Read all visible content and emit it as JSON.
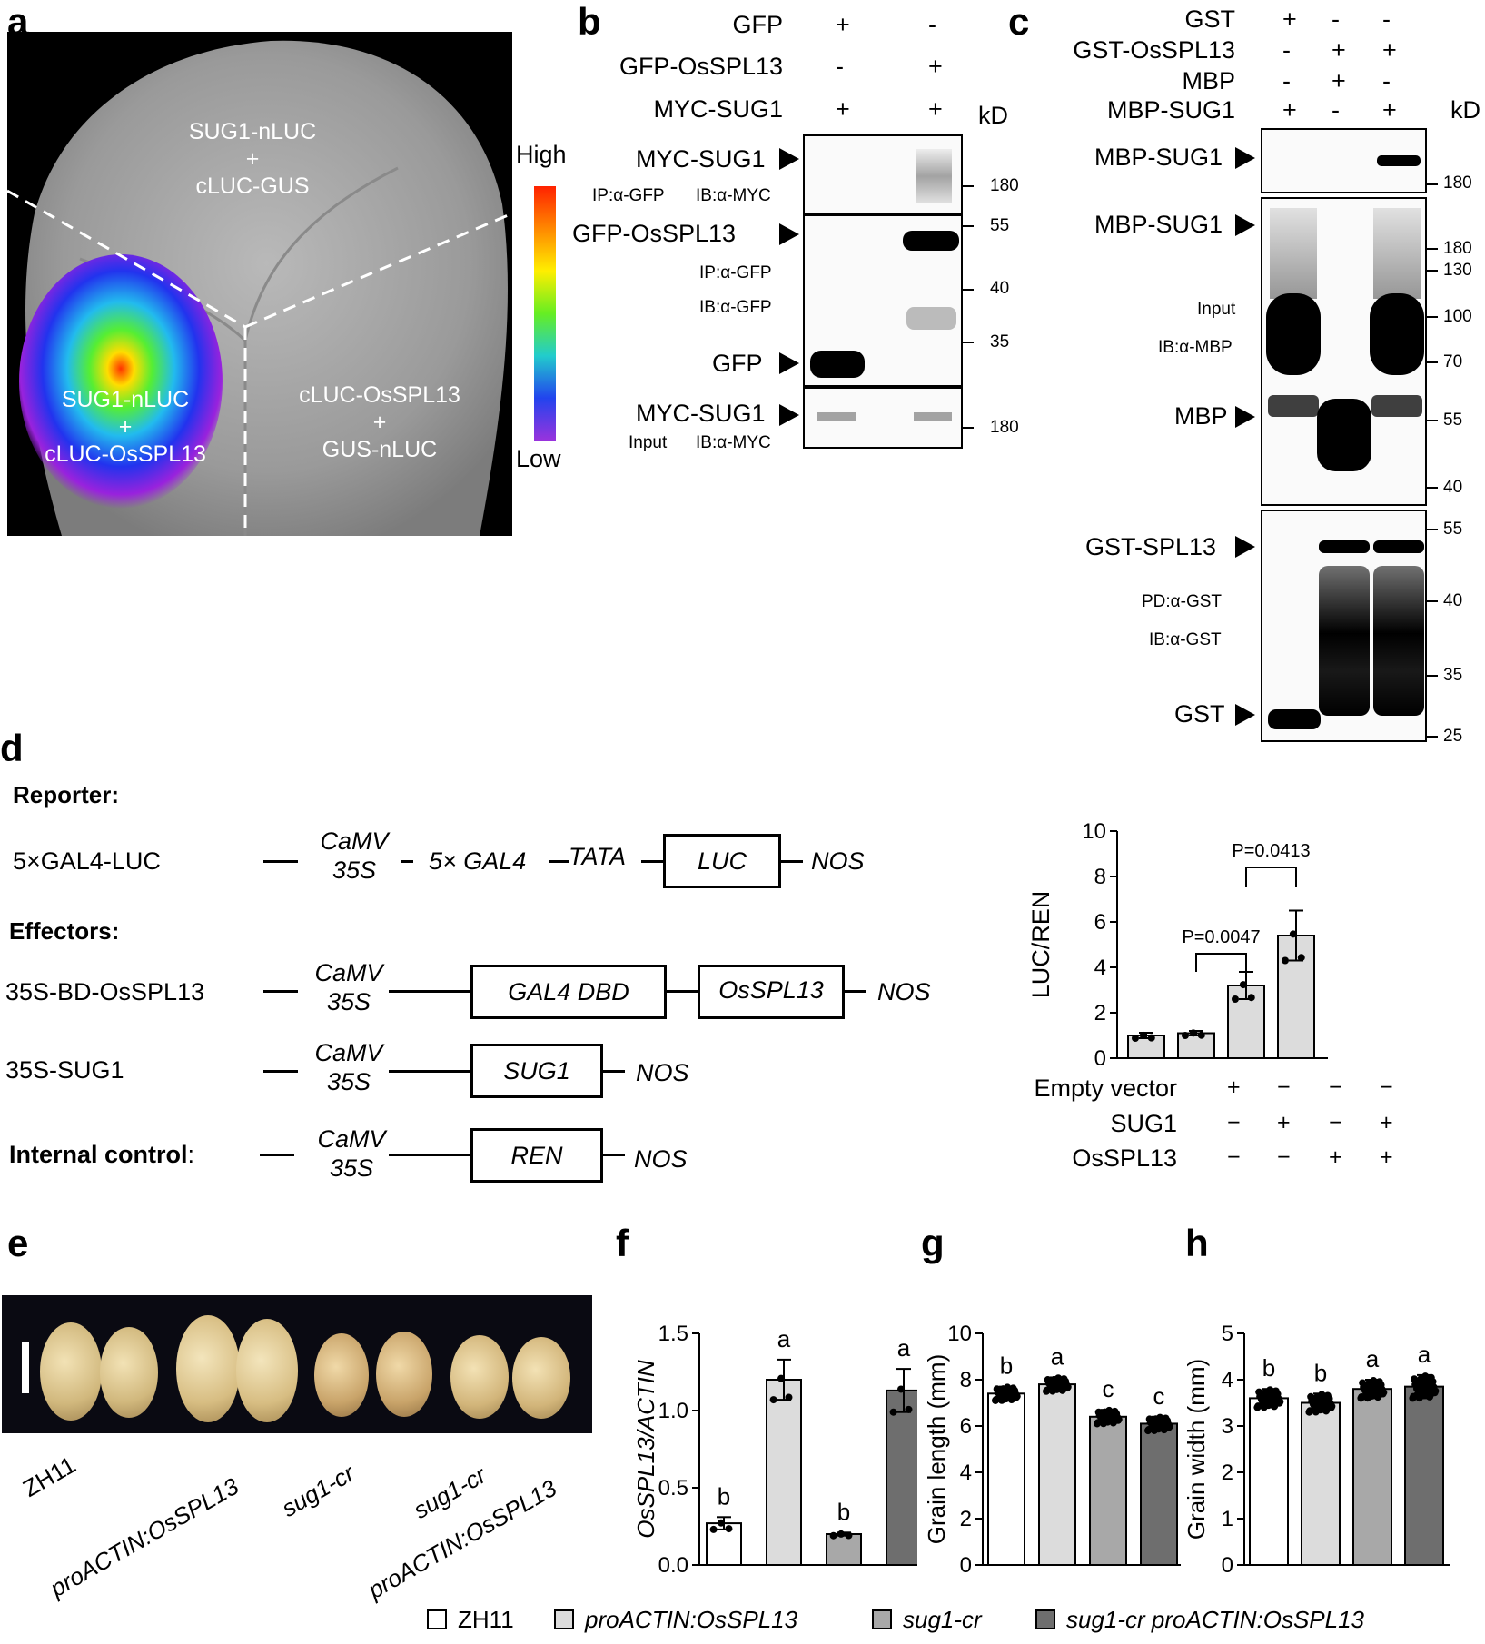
{
  "letters": {
    "a": "a",
    "b": "b",
    "c": "c",
    "d": "d",
    "e": "e",
    "f": "f",
    "g": "g",
    "h": "h"
  },
  "panel_a": {
    "top_label_1": "SUG1-nLUC",
    "top_label_2": "+",
    "top_label_3": "cLUC-GUS",
    "left_label_1": "SUG1-nLUC",
    "left_label_2": "+",
    "left_label_3": "cLUC-OsSPL13",
    "right_label_1": "cLUC-OsSPL13",
    "right_label_2": "+",
    "right_label_3": "GUS-nLUC",
    "scale_high": "High",
    "scale_low": "Low"
  },
  "panel_b": {
    "rows": [
      {
        "label": "GFP",
        "signs": [
          "+",
          "-"
        ]
      },
      {
        "label": "GFP-OsSPL13",
        "signs": [
          "-",
          "+"
        ]
      },
      {
        "label": "MYC-SUG1",
        "signs": [
          "+",
          "+"
        ]
      }
    ],
    "kd": "kD",
    "blot1": {
      "band": "MYC-SUG1",
      "ip": "IP:α-GFP",
      "ib": "IB:α-MYC",
      "mw": [
        "180"
      ]
    },
    "blot2": {
      "band1": "GFP-OsSPL13",
      "band2": "GFP",
      "ip": "IP:α-GFP",
      "ib": "IB:α-GFP",
      "mw": [
        "55",
        "40",
        "35"
      ]
    },
    "blot3": {
      "band": "MYC-SUG1",
      "input": "Input",
      "ib": "IB:α-MYC",
      "mw": [
        "180"
      ]
    }
  },
  "panel_c": {
    "rows": [
      {
        "label": "GST",
        "signs": [
          "+",
          "-",
          "-"
        ]
      },
      {
        "label": "GST-OsSPL13",
        "signs": [
          "-",
          "+",
          "+"
        ]
      },
      {
        "label": "MBP",
        "signs": [
          "-",
          "+",
          "-"
        ]
      },
      {
        "label": "MBP-SUG1",
        "signs": [
          "+",
          "-",
          "+"
        ]
      }
    ],
    "kd": "kD",
    "blot1": {
      "band": "MBP-SUG1",
      "mw": [
        "180"
      ]
    },
    "blot2": {
      "band1": "MBP-SUG1",
      "band2": "MBP",
      "input": "Input",
      "ib": "IB:α-MBP",
      "mw": [
        "180",
        "130",
        "100",
        "70",
        "55",
        "40"
      ]
    },
    "blot3": {
      "band1": "GST-SPL13",
      "band2": "GST",
      "pd": "PD:α-GST",
      "ib": "IB:α-GST",
      "mw": [
        "55",
        "40",
        "35",
        "25"
      ]
    }
  },
  "panel_d": {
    "reporter_title": "Reporter:",
    "reporter_name": "5×GAL4-LUC",
    "effectors_title": "Effectors:",
    "eff1_name": "35S-BD-OsSPL13",
    "eff2_name": "35S-SUG1",
    "control_title": "Internal control",
    "control_colon": ":",
    "camv": "CaMV",
    "s35": "35S",
    "gal4": "5× GAL4",
    "tata": "TATA",
    "luc": "LUC",
    "nos": "NOS",
    "gal4dbd": "GAL4 DBD",
    "osspl13": "OsSPL13",
    "sug1": "SUG1",
    "ren": "REN"
  },
  "chart_data": [
    {
      "panel": "d",
      "type": "bar",
      "ylabel": "LUC/REN",
      "ylim": [
        0,
        10
      ],
      "yticks": [
        "0",
        "2",
        "4",
        "6",
        "8",
        "10"
      ],
      "values": [
        1.0,
        1.1,
        3.2,
        5.4
      ],
      "errors": [
        0.12,
        0.1,
        0.6,
        1.1
      ],
      "conditions": [
        {
          "label": "Empty vector",
          "signs": [
            "+",
            "−",
            "−",
            "−"
          ]
        },
        {
          "label": "SUG1",
          "signs": [
            "−",
            "+",
            "−",
            "+"
          ]
        },
        {
          "label": "OsSPL13",
          "signs": [
            "−",
            "−",
            "+",
            "+"
          ]
        }
      ],
      "annotations": [
        "P=0.0047",
        "P=0.0413"
      ]
    },
    {
      "panel": "f",
      "type": "bar",
      "ylabel": "OsSPL13/ACTIN",
      "ylim": [
        0,
        1.5
      ],
      "yticks": [
        "0.0",
        "0.5",
        "1.0",
        "1.5"
      ],
      "values": [
        0.27,
        1.2,
        0.2,
        1.13
      ],
      "errors": [
        0.04,
        0.13,
        0.01,
        0.14
      ],
      "letters": [
        "b",
        "a",
        "b",
        "a"
      ]
    },
    {
      "panel": "g",
      "type": "bar",
      "ylabel": "Grain length (mm)",
      "ylim": [
        0,
        10
      ],
      "yticks": [
        "0",
        "2",
        "4",
        "6",
        "8",
        "10"
      ],
      "values": [
        7.4,
        7.8,
        6.4,
        6.1
      ],
      "errors": [
        0.3,
        0.3,
        0.3,
        0.3
      ],
      "letters": [
        "b",
        "a",
        "c",
        "c"
      ]
    },
    {
      "panel": "h",
      "type": "bar",
      "ylabel": "Grain width (mm)",
      "ylim": [
        0,
        5
      ],
      "yticks": [
        "0",
        "1",
        "2",
        "3",
        "4",
        "5"
      ],
      "values": [
        3.6,
        3.5,
        3.8,
        3.85
      ],
      "errors": [
        0.2,
        0.2,
        0.2,
        0.25
      ],
      "letters": [
        "b",
        "b",
        "a",
        "a"
      ]
    }
  ],
  "panel_e": {
    "labels": [
      "ZH11",
      "proACTIN:OsSPL13",
      "sug1-cr",
      "sug1-cr",
      "proACTIN:OsSPL13"
    ]
  },
  "legend": [
    {
      "label": "ZH11",
      "color": "#ffffff"
    },
    {
      "label": "proACTIN:OsSPL13",
      "color": "#dcdcdc"
    },
    {
      "label": "sug1-cr",
      "color": "#a8a8a8"
    },
    {
      "label": "sug1-cr proACTIN:OsSPL13",
      "color": "#6e6e6e"
    }
  ]
}
